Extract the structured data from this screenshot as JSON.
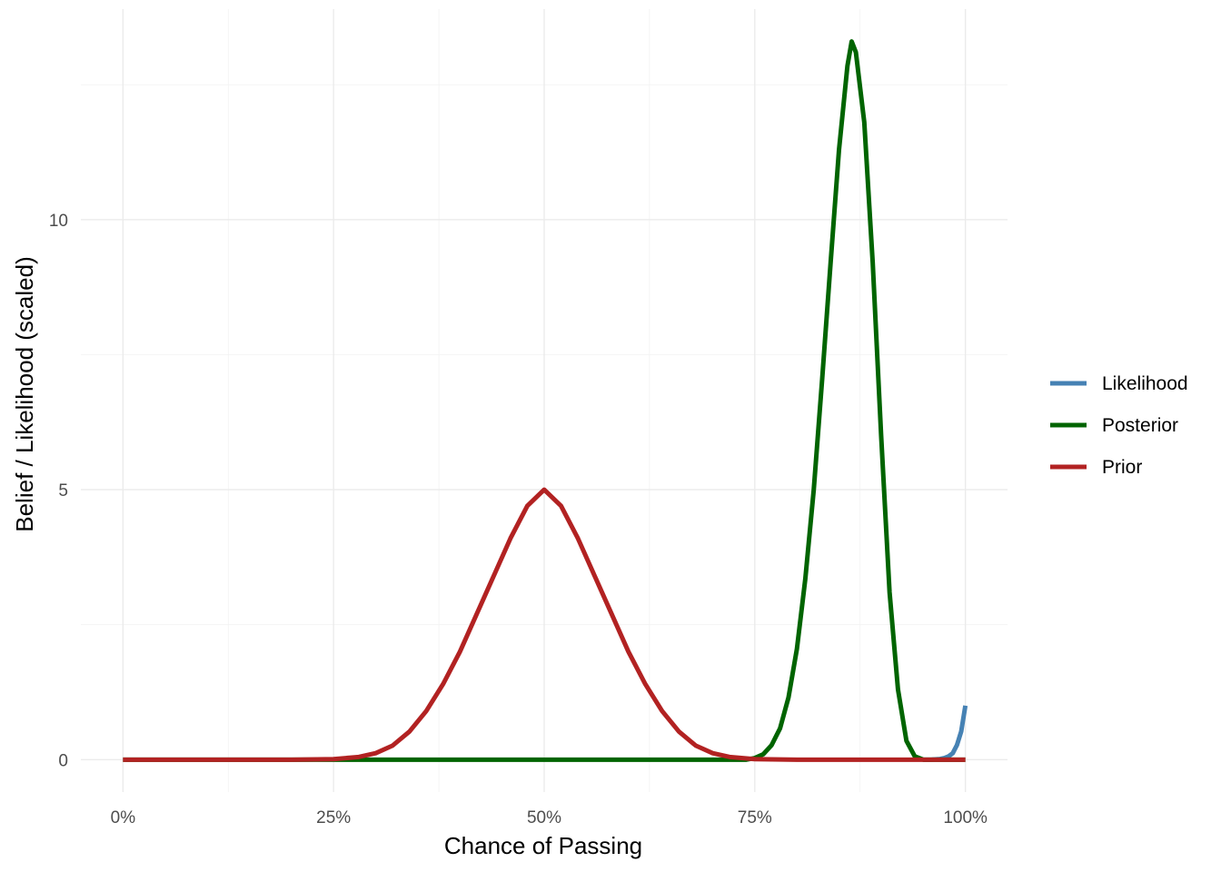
{
  "chart_data": {
    "type": "line",
    "title": "",
    "xlabel": "Chance of Passing",
    "ylabel": "Belief / Likelihood (scaled)",
    "xlim": [
      0,
      1
    ],
    "ylim": [
      -0.6,
      13.9
    ],
    "x_ticks": [
      0,
      0.25,
      0.5,
      0.75,
      1
    ],
    "x_tick_labels": [
      "0%",
      "25%",
      "50%",
      "75%",
      "100%"
    ],
    "y_ticks": [
      0,
      5,
      10
    ],
    "y_tick_labels": [
      "0",
      "5",
      "10"
    ],
    "grid": true,
    "legend_position": "right",
    "series": [
      {
        "name": "Likelihood",
        "color": "#4682b4",
        "points": [
          [
            0.95,
            0.0
          ],
          [
            0.96,
            0.002
          ],
          [
            0.97,
            0.012
          ],
          [
            0.975,
            0.03
          ],
          [
            0.98,
            0.06
          ],
          [
            0.985,
            0.12
          ],
          [
            0.99,
            0.27
          ],
          [
            0.995,
            0.52
          ],
          [
            1.0,
            1.0
          ]
        ]
      },
      {
        "name": "Posterior",
        "color": "#006400",
        "points": [
          [
            0.0,
            0.0
          ],
          [
            0.72,
            0.0
          ],
          [
            0.74,
            0.0
          ],
          [
            0.75,
            0.03
          ],
          [
            0.76,
            0.1
          ],
          [
            0.77,
            0.27
          ],
          [
            0.78,
            0.58
          ],
          [
            0.79,
            1.15
          ],
          [
            0.8,
            2.05
          ],
          [
            0.81,
            3.35
          ],
          [
            0.82,
            5.0
          ],
          [
            0.83,
            7.05
          ],
          [
            0.84,
            9.2
          ],
          [
            0.85,
            11.3
          ],
          [
            0.86,
            12.85
          ],
          [
            0.865,
            13.3
          ],
          [
            0.87,
            13.1
          ],
          [
            0.88,
            11.8
          ],
          [
            0.89,
            9.2
          ],
          [
            0.9,
            6.0
          ],
          [
            0.91,
            3.1
          ],
          [
            0.92,
            1.3
          ],
          [
            0.93,
            0.35
          ],
          [
            0.94,
            0.06
          ],
          [
            0.95,
            0.0
          ],
          [
            1.0,
            0.0
          ]
        ]
      },
      {
        "name": "Prior",
        "color": "#b22222",
        "points": [
          [
            0.0,
            0.0
          ],
          [
            0.2,
            0.0
          ],
          [
            0.25,
            0.01
          ],
          [
            0.28,
            0.05
          ],
          [
            0.3,
            0.12
          ],
          [
            0.32,
            0.26
          ],
          [
            0.34,
            0.52
          ],
          [
            0.36,
            0.9
          ],
          [
            0.38,
            1.4
          ],
          [
            0.4,
            2.0
          ],
          [
            0.42,
            2.7
          ],
          [
            0.44,
            3.4
          ],
          [
            0.46,
            4.1
          ],
          [
            0.48,
            4.7
          ],
          [
            0.5,
            5.0
          ],
          [
            0.52,
            4.7
          ],
          [
            0.54,
            4.1
          ],
          [
            0.56,
            3.4
          ],
          [
            0.58,
            2.7
          ],
          [
            0.6,
            2.0
          ],
          [
            0.62,
            1.4
          ],
          [
            0.64,
            0.9
          ],
          [
            0.66,
            0.52
          ],
          [
            0.68,
            0.26
          ],
          [
            0.7,
            0.12
          ],
          [
            0.72,
            0.05
          ],
          [
            0.75,
            0.01
          ],
          [
            0.8,
            0.0
          ],
          [
            1.0,
            0.0
          ]
        ]
      }
    ]
  }
}
